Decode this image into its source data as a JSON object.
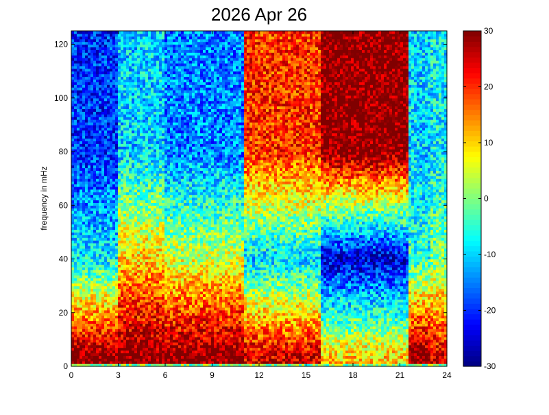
{
  "chart_data": {
    "type": "heatmap",
    "title": "2026 Apr 26",
    "xlabel": "",
    "ylabel": "frequency in mHz",
    "xlim": [
      0,
      24
    ],
    "ylim": [
      0,
      125
    ],
    "xticks": [
      0,
      3,
      6,
      9,
      12,
      15,
      18,
      21,
      24
    ],
    "yticks": [
      0,
      20,
      40,
      60,
      80,
      100,
      120
    ],
    "colorbar": {
      "colormap": "jet",
      "clim": [
        -30,
        30
      ],
      "ticks": [
        -30,
        -20,
        -10,
        0,
        10,
        20,
        30
      ]
    },
    "grid": false,
    "value_description_by_time": [
      {
        "hours": [
          0,
          3
        ],
        "low_freq_max": 30,
        "mid_freq": -8,
        "high_freq": -20
      },
      {
        "hours": [
          3,
          6
        ],
        "low_freq_max": 30,
        "mid_freq": 10,
        "high_freq": -10
      },
      {
        "hours": [
          6,
          11
        ],
        "low_freq_max": 30,
        "mid_freq": 5,
        "high_freq": -15
      },
      {
        "hours": [
          11,
          16
        ],
        "low_freq_max": 25,
        "mid_freq": -10,
        "high_freq": 20
      },
      {
        "hours": [
          16,
          21.5
        ],
        "low_freq_max": 10,
        "mid_freq": -25,
        "high_freq": 30
      },
      {
        "hours": [
          21.5,
          23
        ],
        "low_freq_max": 30,
        "mid_freq": -5,
        "high_freq": -10
      },
      {
        "hours": [
          23,
          24
        ],
        "low_freq_max": 25,
        "mid_freq": 0,
        "high_freq": -8
      }
    ]
  }
}
